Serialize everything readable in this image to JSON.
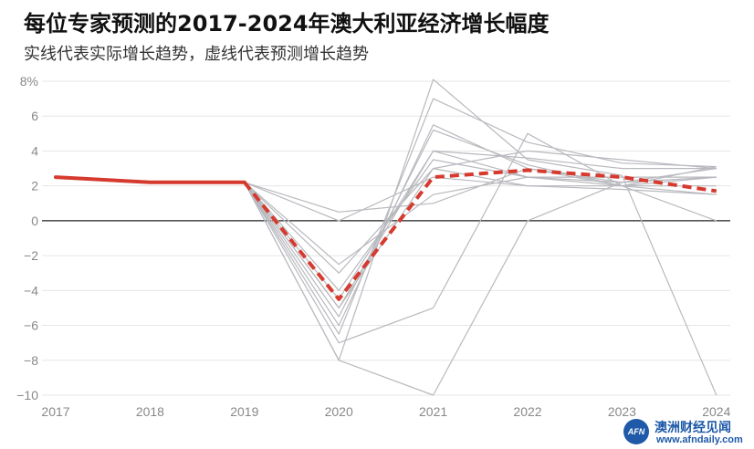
{
  "title": "每位专家预测的2017-2024年澳大利亚经济增长幅度",
  "subtitle": "实线代表实际增长趋势，虚线代表预测增长趋势",
  "logo": {
    "mark": "AFN",
    "name": "澳洲财经见闻",
    "url": "www.afndaily.com"
  },
  "colors": {
    "actual": "#d63a2f",
    "forecast": "#d63a2f",
    "experts": "#b8b9be",
    "zero": "#222222",
    "grid": "#e6e6e6"
  },
  "chart_data": {
    "type": "line",
    "title": "每位专家预测的2017-2024年澳大利亚经济增长幅度",
    "x": [
      "2017",
      "2018",
      "2019",
      "2020",
      "2021",
      "2022",
      "2023",
      "2024"
    ],
    "ylim": [
      -10,
      8
    ],
    "yticks": [
      -10,
      -8,
      -6,
      -4,
      -2,
      0,
      2,
      4,
      6,
      8
    ],
    "ytick_labels": [
      "−10",
      "−8",
      "−6",
      "−4",
      "−2",
      "0",
      "2",
      "4",
      "6",
      "8%"
    ],
    "grid": true,
    "actual": {
      "x": [
        "2017",
        "2018",
        "2019"
      ],
      "values": [
        2.5,
        2.2,
        2.2
      ]
    },
    "forecast": {
      "x": [
        "2019",
        "2020",
        "2021",
        "2022",
        "2023",
        "2024"
      ],
      "values": [
        2.2,
        -4.5,
        2.5,
        2.9,
        2.5,
        1.7
      ]
    },
    "expert_forecasts": [
      [
        2.2,
        -8.0,
        8.1,
        3.5,
        2.6,
        -10.0
      ],
      [
        2.2,
        -6.5,
        7.0,
        4.5,
        3.3,
        3.1
      ],
      [
        2.2,
        -6.0,
        5.5,
        3.0,
        2.2,
        3.0
      ],
      [
        2.2,
        -5.5,
        5.2,
        3.2,
        2.0,
        3.1
      ],
      [
        2.2,
        -5.0,
        4.0,
        3.6,
        3.0,
        3.0
      ],
      [
        2.2,
        -4.5,
        4.0,
        2.5,
        2.2,
        2.5
      ],
      [
        2.2,
        -4.0,
        3.5,
        2.5,
        2.5,
        2.5
      ],
      [
        2.2,
        -3.0,
        3.0,
        2.0,
        2.0,
        2.0
      ],
      [
        2.2,
        -2.5,
        1.5,
        2.5,
        2.0,
        1.5
      ],
      [
        2.2,
        0.0,
        2.5,
        2.0,
        1.8,
        1.5
      ],
      [
        2.2,
        0.5,
        1.0,
        3.0,
        2.0,
        0.0
      ],
      [
        2.2,
        -7.0,
        -5.0,
        5.0,
        2.0,
        2.5
      ],
      [
        2.2,
        -8.0,
        -10.0,
        0.0,
        2.2,
        2.5
      ],
      [
        2.2,
        -5.0,
        3.0,
        4.0,
        3.5,
        3.0
      ]
    ]
  }
}
